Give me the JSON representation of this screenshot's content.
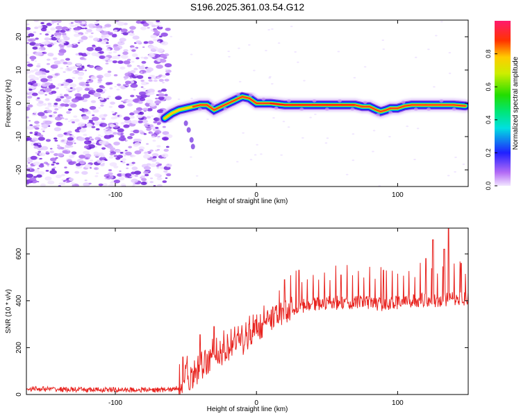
{
  "title": "S196.2025.361.03.54.G12",
  "colors": {
    "ridge_mid": "#ff0000",
    "noise": "#8a2be2",
    "snr_line": "#e8231f",
    "frame": "#000000"
  },
  "chart_data": [
    {
      "type": "heatmap",
      "xlabel": "Height of straight line (km)",
      "ylabel": "Frequency (Hz)",
      "xlim": [
        -163,
        150
      ],
      "ylim": [
        -25,
        25
      ],
      "xticks": [
        -100,
        0,
        100
      ],
      "xtick_labels": [
        "-100",
        "0",
        "100"
      ],
      "yticks": [
        -20,
        -10,
        0,
        10,
        20
      ],
      "ytick_labels": [
        "-20",
        "-10",
        "0",
        "10",
        "20"
      ],
      "noise_region_x": [
        -163,
        -65
      ],
      "ridge": {
        "x": [
          -65,
          -60,
          -55,
          -50,
          -45,
          -40,
          -35,
          -30,
          -25,
          -20,
          -15,
          -10,
          -5,
          0,
          5,
          10,
          20,
          30,
          40,
          50,
          60,
          70,
          75,
          80,
          85,
          88,
          92,
          95,
          100,
          105,
          110,
          120,
          130,
          140,
          148
        ],
        "freq_hz": [
          -4.5,
          -3.0,
          -2.0,
          -1.5,
          -1.0,
          -0.5,
          -0.5,
          -2.0,
          -1.0,
          0.0,
          1.0,
          2.0,
          1.5,
          0.0,
          0.0,
          0.0,
          -0.5,
          -0.5,
          -0.5,
          -0.5,
          -0.5,
          -0.5,
          -1.0,
          -1.0,
          -2.0,
          -2.5,
          -2.0,
          -1.5,
          -1.5,
          -0.8,
          -0.5,
          -0.5,
          -0.5,
          -0.5,
          -0.8
        ],
        "amplitude": [
          0.3,
          0.4,
          0.5,
          0.6,
          0.7,
          0.8,
          0.85,
          0.7,
          0.8,
          0.85,
          0.9,
          0.95,
          0.95,
          0.95,
          0.95,
          0.95,
          1.0,
          1.0,
          1.0,
          1.0,
          1.0,
          1.0,
          0.9,
          0.85,
          0.8,
          0.75,
          0.8,
          0.85,
          0.9,
          0.9,
          0.9,
          0.9,
          0.9,
          0.9,
          0.9
        ]
      },
      "colorbar": {
        "label": "Normalized spectral amplitude",
        "range": [
          0.0,
          1.0
        ],
        "ticks": [
          0.0,
          0.2,
          0.4,
          0.6,
          0.8
        ],
        "tick_labels": [
          "0.0",
          "0.2",
          "0.4",
          "0.6",
          "0.8"
        ]
      }
    },
    {
      "type": "line",
      "xlabel": "Height of straight line (km)",
      "ylabel": "SNR (10 * v/v)",
      "xlim": [
        -163,
        150
      ],
      "ylim": [
        0,
        710
      ],
      "xticks": [
        -100,
        0,
        100
      ],
      "xtick_labels": [
        "-100",
        "0",
        "100"
      ],
      "yticks": [
        0,
        200,
        400,
        600
      ],
      "ytick_labels": [
        "0",
        "200",
        "400",
        "600"
      ],
      "series": [
        {
          "name": "SNR",
          "x": [
            -163,
            -140,
            -120,
            -100,
            -80,
            -65,
            -58,
            -53,
            -50,
            -45,
            -40,
            -35,
            -30,
            -25,
            -20,
            -15,
            -10,
            -5,
            0,
            5,
            10,
            15,
            20,
            25,
            30,
            40,
            50,
            60,
            70,
            80,
            90,
            100,
            110,
            120,
            130,
            140,
            150
          ],
          "values": [
            25,
            22,
            20,
            20,
            20,
            20,
            22,
            40,
            85,
            60,
            110,
            140,
            160,
            170,
            190,
            210,
            220,
            250,
            270,
            295,
            315,
            335,
            355,
            365,
            375,
            385,
            390,
            392,
            395,
            390,
            385,
            392,
            400,
            405,
            400,
            410,
            410
          ],
          "spike_heights": [
            [
              -52,
              160
            ],
            [
              -40,
              255
            ],
            [
              -30,
              290
            ],
            [
              20,
              490
            ],
            [
              30,
              530
            ],
            [
              60,
              510
            ],
            [
              90,
              530
            ],
            [
              120,
              580
            ],
            [
              125,
              660
            ],
            [
              133,
              620
            ],
            [
              136,
              710
            ],
            [
              145,
              560
            ]
          ]
        }
      ]
    }
  ]
}
